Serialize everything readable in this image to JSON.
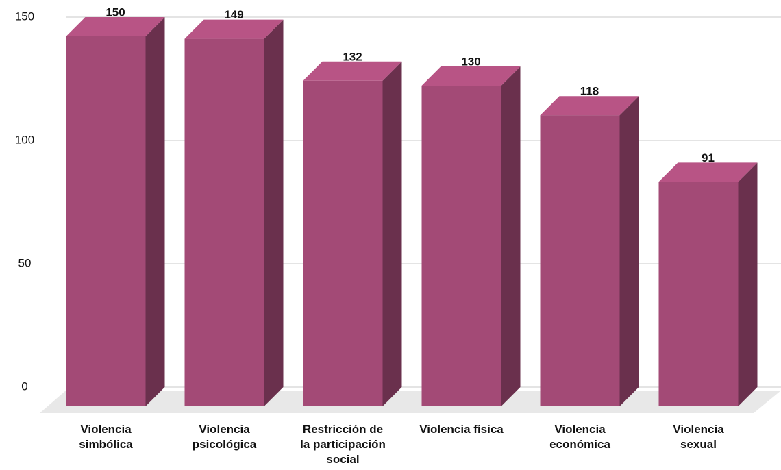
{
  "chart_data": {
    "type": "bar3d",
    "categories": [
      [
        "Violencia",
        "simbólica"
      ],
      [
        "Violencia",
        "psicológica"
      ],
      [
        "Restricción de",
        "la participación",
        "social"
      ],
      [
        "Violencia física"
      ],
      [
        "Violencia",
        "económica"
      ],
      [
        "Violencia",
        "sexual"
      ]
    ],
    "values": [
      150,
      149,
      132,
      130,
      118,
      91
    ],
    "color": "#a34a76",
    "ylim": [
      0,
      150
    ],
    "yticks": [
      0,
      50,
      100,
      150
    ],
    "grid": true
  }
}
